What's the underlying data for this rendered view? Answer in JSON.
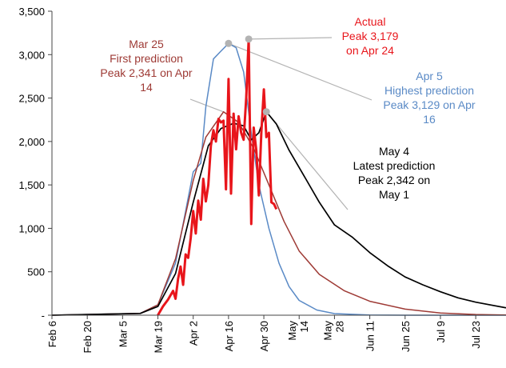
{
  "chart_data": {
    "type": "line",
    "title": "",
    "xlabel": "",
    "ylabel": "",
    "ylim": [
      0,
      3500
    ],
    "yticks": [
      0,
      500,
      1000,
      1500,
      2000,
      2500,
      3000,
      3500
    ],
    "ytick_labels": [
      "-",
      "500",
      "1,000",
      "1,500",
      "2,000",
      "2,500",
      "3,000",
      "3,500"
    ],
    "xlim": [
      "2020-02-06",
      "2020-08-04"
    ],
    "xticks": [
      "2020-02-06",
      "2020-02-20",
      "2020-03-05",
      "2020-03-19",
      "2020-04-02",
      "2020-04-16",
      "2020-04-30",
      "2020-05-14",
      "2020-05-28",
      "2020-06-11",
      "2020-06-25",
      "2020-07-09",
      "2020-07-23"
    ],
    "xtick_labels": [
      "Feb 6",
      "Feb 20",
      "Mar 5",
      "Mar 19",
      "Apr 2",
      "Apr 16",
      "Apr 30",
      "May 14",
      "May 28",
      "Jun 11",
      "Jun 25",
      "Jul 9",
      "Jul 23"
    ],
    "grid": false,
    "legend": "none",
    "series": [
      {
        "key": "mar25",
        "color": "#9e3a35",
        "points": [
          [
            "2020-02-06",
            0
          ],
          [
            "2020-03-12",
            20
          ],
          [
            "2020-03-19",
            120
          ],
          [
            "2020-03-26",
            650
          ],
          [
            "2020-04-02",
            1550
          ],
          [
            "2020-04-07",
            2050
          ],
          [
            "2020-04-14",
            2341
          ],
          [
            "2020-04-20",
            2220
          ],
          [
            "2020-04-26",
            1920
          ],
          [
            "2020-05-02",
            1500
          ],
          [
            "2020-05-08",
            1080
          ],
          [
            "2020-05-14",
            740
          ],
          [
            "2020-05-22",
            470
          ],
          [
            "2020-06-01",
            280
          ],
          [
            "2020-06-11",
            160
          ],
          [
            "2020-06-25",
            70
          ],
          [
            "2020-07-09",
            25
          ],
          [
            "2020-07-23",
            8
          ],
          [
            "2020-08-04",
            2
          ]
        ]
      },
      {
        "key": "apr5",
        "color": "#5a8ac6",
        "points": [
          [
            "2020-02-06",
            0
          ],
          [
            "2020-03-12",
            20
          ],
          [
            "2020-03-19",
            120
          ],
          [
            "2020-03-26",
            600
          ],
          [
            "2020-04-02",
            1650
          ],
          [
            "2020-04-05",
            1750
          ],
          [
            "2020-04-07",
            2400
          ],
          [
            "2020-04-10",
            2950
          ],
          [
            "2020-04-13",
            3040
          ],
          [
            "2020-04-16",
            3129
          ],
          [
            "2020-04-19",
            3080
          ],
          [
            "2020-04-22",
            2800
          ],
          [
            "2020-04-25",
            2100
          ],
          [
            "2020-04-28",
            1500
          ],
          [
            "2020-05-02",
            1000
          ],
          [
            "2020-05-06",
            600
          ],
          [
            "2020-05-10",
            330
          ],
          [
            "2020-05-14",
            170
          ],
          [
            "2020-05-21",
            60
          ],
          [
            "2020-05-28",
            18
          ],
          [
            "2020-06-11",
            2
          ],
          [
            "2020-06-25",
            0
          ],
          [
            "2020-08-04",
            0
          ]
        ]
      },
      {
        "key": "may4",
        "color": "#000000",
        "points": [
          [
            "2020-02-06",
            0
          ],
          [
            "2020-03-12",
            20
          ],
          [
            "2020-03-19",
            100
          ],
          [
            "2020-03-26",
            480
          ],
          [
            "2020-04-02",
            1300
          ],
          [
            "2020-04-08",
            1950
          ],
          [
            "2020-04-13",
            2150
          ],
          [
            "2020-04-18",
            2210
          ],
          [
            "2020-04-22",
            2180
          ],
          [
            "2020-04-25",
            2020
          ],
          [
            "2020-04-28",
            2100
          ],
          [
            "2020-05-01",
            2342
          ],
          [
            "2020-05-05",
            2200
          ],
          [
            "2020-05-10",
            1900
          ],
          [
            "2020-05-16",
            1600
          ],
          [
            "2020-05-22",
            1300
          ],
          [
            "2020-05-28",
            1040
          ],
          [
            "2020-06-04",
            900
          ],
          [
            "2020-06-11",
            720
          ],
          [
            "2020-06-18",
            570
          ],
          [
            "2020-06-25",
            440
          ],
          [
            "2020-07-02",
            350
          ],
          [
            "2020-07-09",
            270
          ],
          [
            "2020-07-16",
            200
          ],
          [
            "2020-07-23",
            150
          ],
          [
            "2020-08-04",
            85
          ]
        ]
      },
      {
        "key": "actual",
        "color": "#e8151b",
        "points": [
          [
            "2020-03-19",
            0
          ],
          [
            "2020-03-21",
            100
          ],
          [
            "2020-03-23",
            180
          ],
          [
            "2020-03-25",
            280
          ],
          [
            "2020-03-26",
            190
          ],
          [
            "2020-03-27",
            420
          ],
          [
            "2020-03-28",
            560
          ],
          [
            "2020-03-29",
            350
          ],
          [
            "2020-03-30",
            700
          ],
          [
            "2020-03-31",
            660
          ],
          [
            "2020-04-01",
            890
          ],
          [
            "2020-04-02",
            1200
          ],
          [
            "2020-04-03",
            940
          ],
          [
            "2020-04-04",
            1320
          ],
          [
            "2020-04-05",
            1100
          ],
          [
            "2020-04-06",
            1570
          ],
          [
            "2020-04-07",
            1310
          ],
          [
            "2020-04-08",
            1500
          ],
          [
            "2020-04-09",
            1950
          ],
          [
            "2020-04-10",
            2130
          ],
          [
            "2020-04-11",
            2000
          ],
          [
            "2020-04-12",
            2260
          ],
          [
            "2020-04-13",
            2220
          ],
          [
            "2020-04-14",
            2240
          ],
          [
            "2020-04-15",
            1450
          ],
          [
            "2020-04-16",
            2720
          ],
          [
            "2020-04-17",
            1400
          ],
          [
            "2020-04-18",
            2320
          ],
          [
            "2020-04-19",
            1910
          ],
          [
            "2020-04-20",
            2290
          ],
          [
            "2020-04-21",
            2100
          ],
          [
            "2020-04-22",
            2020
          ],
          [
            "2020-04-23",
            2500
          ],
          [
            "2020-04-24",
            3179
          ],
          [
            "2020-04-25",
            1050
          ],
          [
            "2020-04-26",
            2160
          ],
          [
            "2020-04-27",
            1900
          ],
          [
            "2020-04-28",
            1380
          ],
          [
            "2020-04-29",
            2100
          ],
          [
            "2020-04-30",
            2600
          ],
          [
            "2020-05-01",
            2050
          ],
          [
            "2020-05-02",
            2100
          ],
          [
            "2020-05-03",
            1300
          ],
          [
            "2020-05-04",
            1280
          ],
          [
            "2020-05-05",
            1220
          ]
        ]
      }
    ],
    "markers": [
      {
        "x": "2020-04-16",
        "y": 3129,
        "color": "#b3b3b3"
      },
      {
        "x": "2020-04-24",
        "y": 3179,
        "color": "#b3b3b3"
      },
      {
        "x": "2020-05-01",
        "y": 2342,
        "color": "#b3b3b3"
      }
    ],
    "annotations": [
      {
        "key": "mar25",
        "color": "#9e3a35",
        "lines": [
          "Mar 25",
          "First prediction",
          "Peak 2,341 on Apr",
          "14"
        ]
      },
      {
        "key": "actual",
        "color": "#e8151b",
        "lines": [
          "Actual",
          "Peak 3,179",
          "on Apr 24"
        ]
      },
      {
        "key": "apr5",
        "color": "#5a8ac6",
        "lines": [
          "Apr 5",
          "Highest prediction",
          "Peak 3,129 on Apr",
          "16"
        ]
      },
      {
        "key": "may4",
        "color": "#000000",
        "lines": [
          "May 4",
          "Latest prediction",
          "Peak 2,342 on",
          "May 1"
        ]
      }
    ]
  }
}
